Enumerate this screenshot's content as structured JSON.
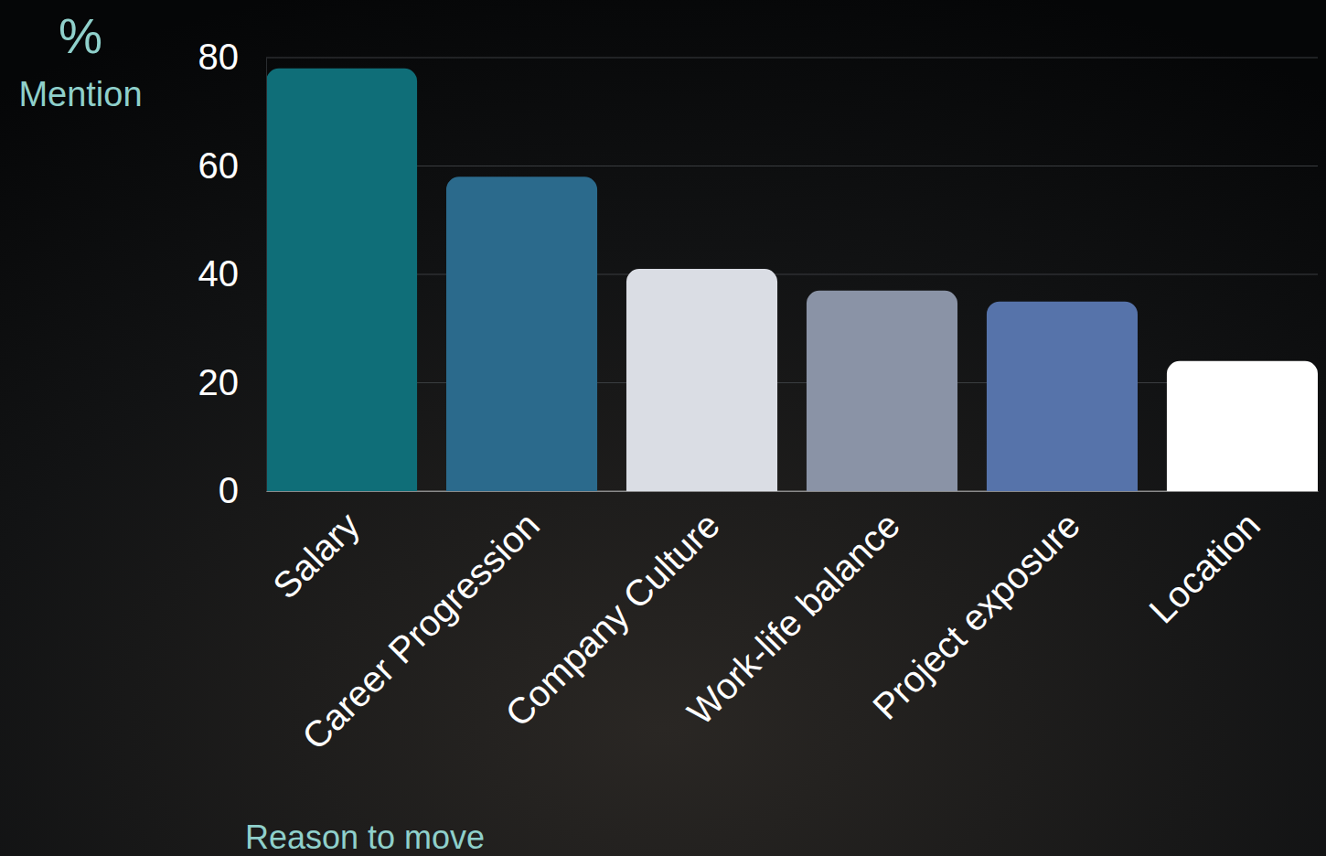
{
  "chart_data": {
    "type": "bar",
    "y_label": "% Mention",
    "x_label": "Reason to move",
    "categories": [
      "Salary",
      "Career Progression",
      "Company Culture",
      "Work-life balance",
      "Project exposure",
      "Location"
    ],
    "values": [
      78,
      58,
      41,
      37,
      35,
      24
    ],
    "colors": [
      "#0f6e78",
      "#2b6a8c",
      "#dadde4",
      "#8a93a6",
      "#5673aa",
      "#ffffff"
    ],
    "ylim": [
      0,
      80
    ],
    "yticks": [
      0,
      20,
      40,
      60,
      80
    ],
    "grid": true
  }
}
